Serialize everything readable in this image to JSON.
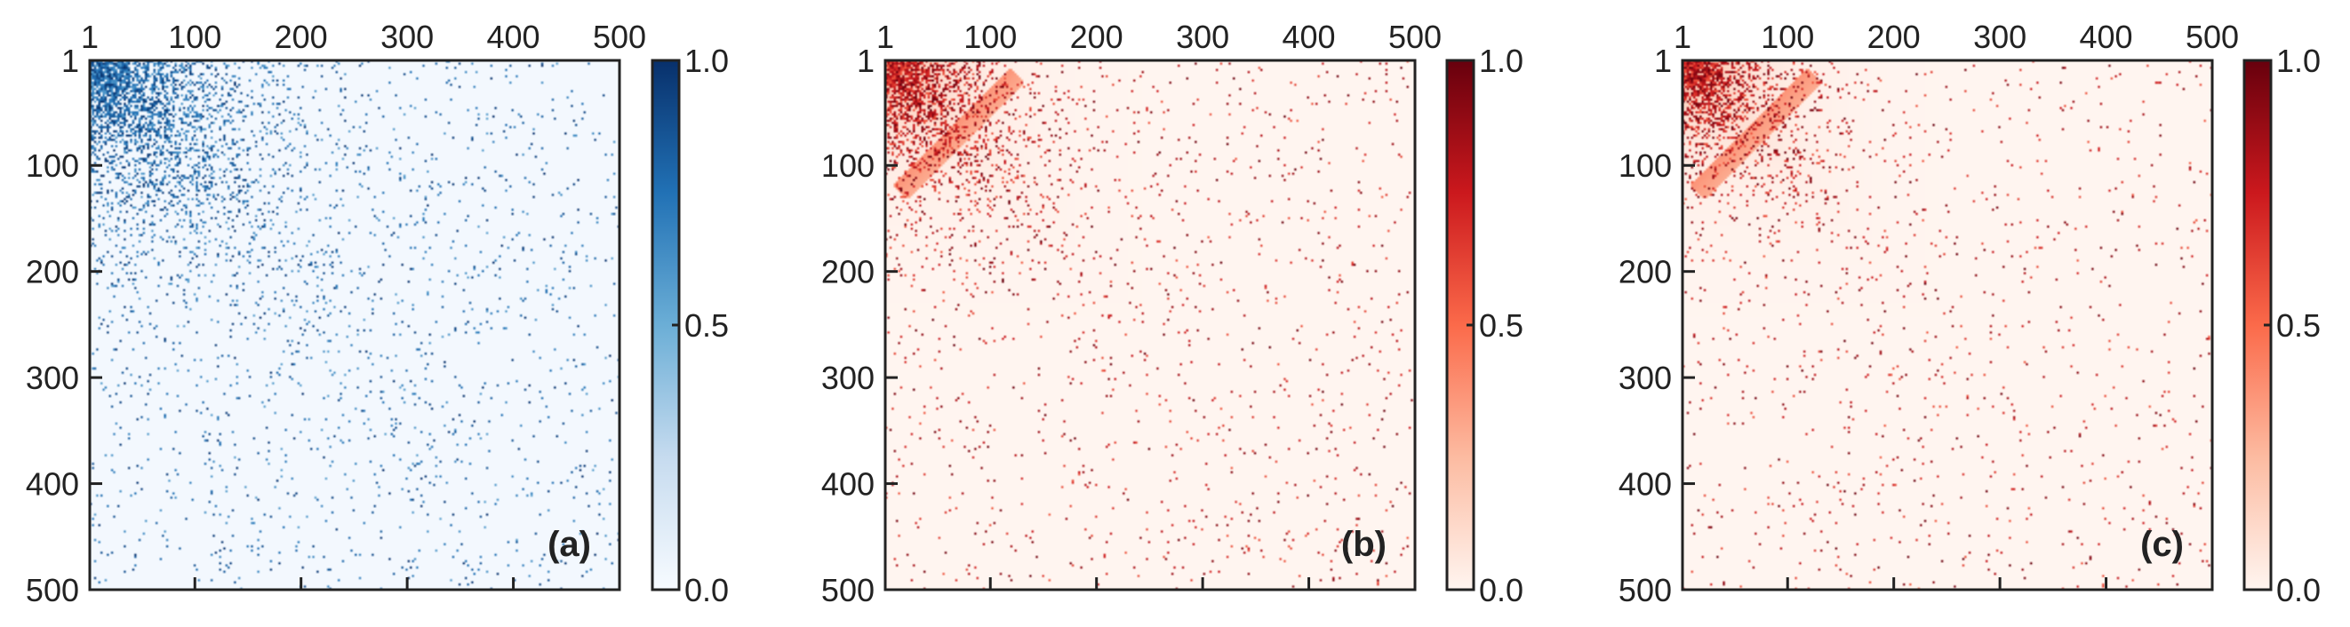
{
  "chart_data": [
    {
      "type": "heatmap",
      "panel_label": "(a)",
      "colormap": "Blues",
      "x_ticks": [
        "1",
        "100",
        "200",
        "300",
        "400",
        "500"
      ],
      "y_ticks": [
        "1",
        "100",
        "200",
        "300",
        "400",
        "500"
      ],
      "xlim": [
        1,
        500
      ],
      "ylim": [
        1,
        500
      ],
      "colorbar": {
        "ticks": [
          "0.0",
          "0.5",
          "1.0"
        ],
        "range": [
          0.0,
          1.0
        ]
      },
      "pattern": {
        "dense_region_end": 150,
        "density_decay": 60,
        "background_density": 0.022,
        "diagonal_band": false
      }
    },
    {
      "type": "heatmap",
      "panel_label": "(b)",
      "colormap": "Reds",
      "x_ticks": [
        "1",
        "100",
        "200",
        "300",
        "400",
        "500"
      ],
      "y_ticks": [
        "1",
        "100",
        "200",
        "300",
        "400",
        "500"
      ],
      "xlim": [
        1,
        500
      ],
      "ylim": [
        1,
        500
      ],
      "colorbar": {
        "ticks": [
          "0.0",
          "0.5",
          "1.0"
        ],
        "range": [
          0.0,
          1.0
        ]
      },
      "pattern": {
        "dense_region_end": 110,
        "density_decay": 45,
        "background_density": 0.016,
        "diagonal_band": true,
        "band_start": 20,
        "band_end": 120
      }
    },
    {
      "type": "heatmap",
      "panel_label": "(c)",
      "colormap": "Reds",
      "x_ticks": [
        "1",
        "100",
        "200",
        "300",
        "400",
        "500"
      ],
      "y_ticks": [
        "1",
        "100",
        "200",
        "300",
        "400",
        "500"
      ],
      "xlim": [
        1,
        500
      ],
      "ylim": [
        1,
        500
      ],
      "colorbar": {
        "ticks": [
          "0.0",
          "0.5",
          "1.0"
        ],
        "range": [
          0.0,
          1.0
        ]
      },
      "pattern": {
        "dense_region_end": 110,
        "density_decay": 40,
        "background_density": 0.015,
        "diagonal_band": true,
        "band_start": 20,
        "band_end": 120
      }
    }
  ],
  "colors": {
    "blues_low": "#f7fbff",
    "blues_high": "#08306b",
    "reds_low": "#fff5f0",
    "reds_high": "#67000d",
    "axis": "#222222"
  }
}
